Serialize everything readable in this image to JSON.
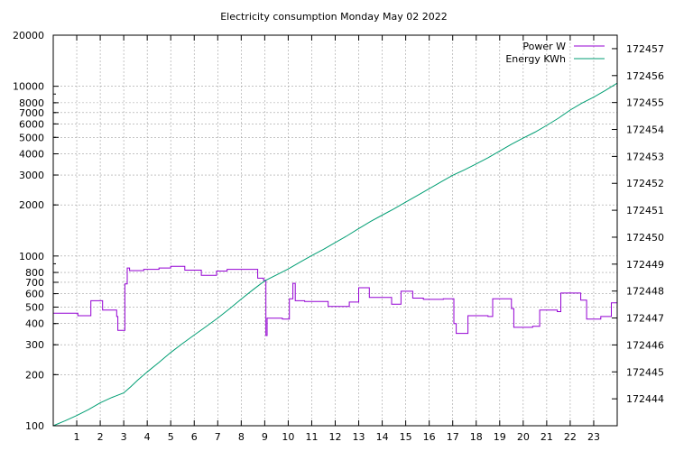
{
  "chart_data": {
    "type": "line",
    "title": "Electricity consumption Monday May 02 2022",
    "xlabel": "",
    "ylabel": "",
    "y2label": "",
    "xlim": [
      0,
      24
    ],
    "x_ticks": [
      1,
      2,
      3,
      4,
      5,
      6,
      7,
      8,
      9,
      10,
      11,
      12,
      13,
      14,
      15,
      16,
      17,
      18,
      19,
      20,
      21,
      22,
      23
    ],
    "ylim": [
      100,
      20000
    ],
    "yscale": "log",
    "y_ticks": [
      100,
      200,
      300,
      400,
      500,
      600,
      700,
      800,
      1000,
      2000,
      3000,
      4000,
      5000,
      6000,
      7000,
      8000,
      10000,
      20000
    ],
    "y2lim": [
      172443,
      172457.5
    ],
    "y2_ticks": [
      172444,
      172445,
      172446,
      172447,
      172448,
      172449,
      172450,
      172451,
      172452,
      172453,
      172454,
      172455,
      172456,
      172457
    ],
    "grid": true,
    "legend_position": "top-right",
    "series": [
      {
        "name": "Power W",
        "color": "#9400d3",
        "axis": "left",
        "style": "step",
        "x": [
          0,
          1.05,
          1.6,
          2.1,
          2.7,
          2.75,
          3.05,
          3.15,
          3.25,
          3.85,
          4.5,
          5.0,
          5.6,
          6.3,
          6.95,
          7.4,
          8.7,
          8.95,
          9.05,
          9.1,
          9.75,
          10.05,
          10.2,
          10.3,
          10.7,
          11.7,
          12.6,
          13.0,
          13.45,
          14.4,
          14.8,
          15.3,
          15.75,
          16.6,
          17.05,
          17.15,
          17.65,
          18.5,
          18.7,
          19.5,
          19.6,
          20.4,
          20.7,
          21.45,
          21.6,
          22.45,
          22.7,
          23.3,
          23.75,
          24
        ],
        "values": [
          460,
          445,
          545,
          480,
          440,
          365,
          685,
          850,
          820,
          835,
          850,
          870,
          825,
          770,
          815,
          835,
          740,
          720,
          340,
          430,
          425,
          560,
          690,
          545,
          540,
          505,
          535,
          650,
          570,
          520,
          620,
          565,
          555,
          560,
          400,
          350,
          445,
          440,
          560,
          490,
          380,
          385,
          480,
          470,
          605,
          550,
          425,
          440,
          530,
          570
        ]
      },
      {
        "name": "Energy KWh",
        "color": "#009e73",
        "axis": "right",
        "style": "line",
        "x": [
          0,
          0.5,
          1,
          1.5,
          2,
          2.5,
          3,
          3.3,
          3.6,
          4,
          4.5,
          5,
          5.5,
          6,
          6.5,
          7,
          7.5,
          8,
          8.5,
          9,
          9.5,
          10,
          10.5,
          11,
          11.5,
          12,
          12.5,
          13,
          13.5,
          14,
          14.5,
          15,
          15.5,
          16,
          16.5,
          17,
          17.5,
          18,
          18.5,
          19,
          19.5,
          20,
          20.5,
          21,
          21.5,
          22,
          22.5,
          23,
          23.5,
          24
        ],
        "values": [
          172443.0,
          172443.18,
          172443.38,
          172443.6,
          172443.85,
          172444.05,
          172444.22,
          172444.45,
          172444.7,
          172445.0,
          172445.35,
          172445.72,
          172446.05,
          172446.37,
          172446.68,
          172447.0,
          172447.34,
          172447.7,
          172448.05,
          172448.38,
          172448.6,
          172448.82,
          172449.07,
          172449.32,
          172449.55,
          172449.8,
          172450.05,
          172450.32,
          172450.58,
          172450.82,
          172451.05,
          172451.3,
          172451.55,
          172451.8,
          172452.05,
          172452.3,
          172452.5,
          172452.72,
          172452.95,
          172453.2,
          172453.45,
          172453.68,
          172453.9,
          172454.15,
          172454.42,
          172454.72,
          172454.98,
          172455.2,
          172455.45,
          172455.72
        ]
      }
    ]
  }
}
